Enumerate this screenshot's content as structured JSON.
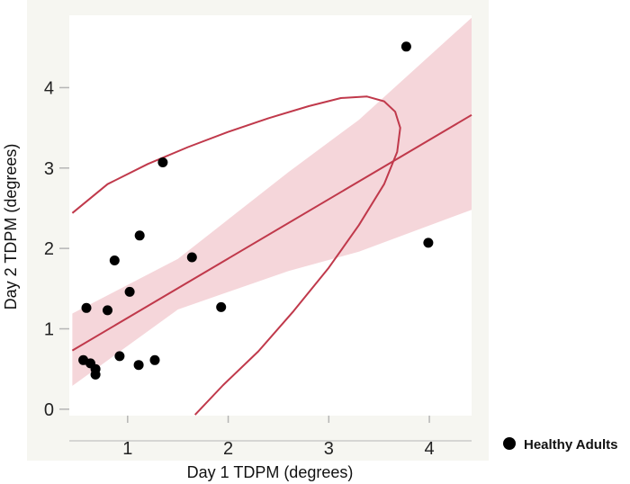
{
  "chart_data": {
    "type": "scatter",
    "title": "",
    "xlabel": "Day 1 TDPM (degrees)",
    "ylabel": "Day 2 TDPM (degrees)",
    "xlim": [
      0.42,
      4.42
    ],
    "ylim": [
      -0.08,
      4.9
    ],
    "xticks": [
      1,
      2,
      3,
      4
    ],
    "yticks": [
      0,
      1,
      2,
      3,
      4
    ],
    "grid": false,
    "legend_position": "bottom-right, outside plot",
    "series": [
      {
        "name": "Healthy Adults",
        "x": [
          0.56,
          0.59,
          0.63,
          0.68,
          0.68,
          0.8,
          0.87,
          0.92,
          1.02,
          1.11,
          1.12,
          1.27,
          1.35,
          1.64,
          1.93,
          3.77,
          3.99
        ],
        "y": [
          0.61,
          1.26,
          0.57,
          0.5,
          0.43,
          1.23,
          1.85,
          0.66,
          1.46,
          0.55,
          2.16,
          0.61,
          3.07,
          1.89,
          1.27,
          4.51,
          2.07
        ]
      }
    ],
    "fit_line": {
      "x": [
        0.45,
        4.42
      ],
      "y": [
        0.73,
        3.66
      ]
    },
    "confidence_band": {
      "x": [
        0.45,
        1.5,
        2.6,
        3.3,
        4.42
      ],
      "upper": [
        1.19,
        1.87,
        2.95,
        3.6,
        4.87
      ],
      "lower": [
        0.29,
        1.24,
        1.72,
        1.96,
        2.48
      ]
    },
    "ellipse": {
      "x": [
        1.67,
        1.95,
        2.3,
        2.65,
        3.0,
        3.3,
        3.55,
        3.68,
        3.71,
        3.66,
        3.55,
        3.38,
        3.12,
        2.8,
        2.4,
        2.0,
        1.6,
        1.2,
        0.8,
        0.45
      ],
      "y": [
        -0.07,
        0.3,
        0.72,
        1.22,
        1.76,
        2.29,
        2.8,
        3.2,
        3.5,
        3.7,
        3.83,
        3.89,
        3.87,
        3.77,
        3.62,
        3.45,
        3.26,
        3.05,
        2.8,
        2.44
      ]
    },
    "colors": {
      "points": "#000000",
      "line": "#c0394b",
      "band": "#f1c8ce",
      "panel": "#f6f6f1",
      "plot_bg": "#ffffff",
      "axis": "#555555"
    }
  }
}
